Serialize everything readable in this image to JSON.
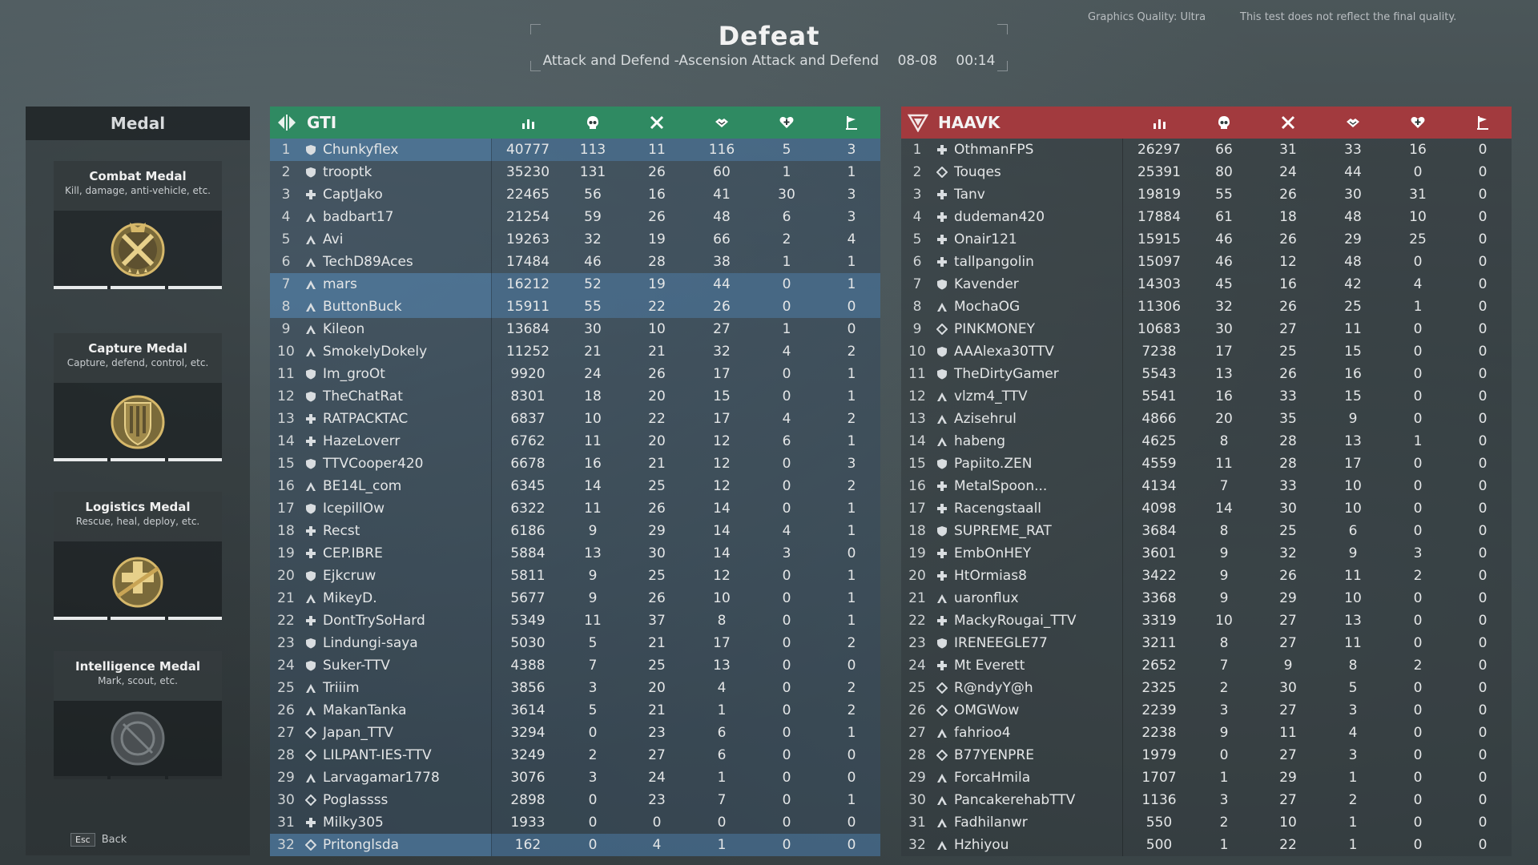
{
  "header": {
    "title": "Defeat",
    "mode": "Attack and Defend -Ascension Attack and Defend",
    "date": "08-08",
    "time": "00:14",
    "graphics_quality": "Graphics Quality: Ultra",
    "note": "This test does not reflect the final quality."
  },
  "medal_panel": {
    "title": "Medal",
    "medals": [
      {
        "name": "Combat Medal",
        "desc": "Kill, damage, anti-vehicle, etc."
      },
      {
        "name": "Capture Medal",
        "desc": "Capture, defend, control, etc."
      },
      {
        "name": "Logistics Medal",
        "desc": "Rescue, heal, deploy, etc."
      },
      {
        "name": "Intelligence Medal",
        "desc": "Mark, scout, etc."
      }
    ],
    "back_key": "Esc",
    "back_label": "Back"
  },
  "colors": {
    "gti": "#2f8a62",
    "haavk": "#a23a3e",
    "selected_row": "#46708f"
  },
  "column_icons": [
    "score-icon",
    "kills-icon",
    "deaths-icon",
    "assists-icon",
    "revives-icon",
    "captures-icon"
  ],
  "teams": [
    {
      "name": "GTI",
      "rows": [
        {
          "rank": "1",
          "cls": "shield",
          "name": "Chunkyflex",
          "v": [
            "40777",
            "113",
            "11",
            "116",
            "5",
            "3"
          ],
          "sel": true
        },
        {
          "rank": "2",
          "cls": "shield",
          "name": "trooptk",
          "v": [
            "35230",
            "131",
            "26",
            "60",
            "1",
            "1"
          ]
        },
        {
          "rank": "3",
          "cls": "cross",
          "name": "CaptJako",
          "v": [
            "22465",
            "56",
            "16",
            "41",
            "30",
            "3"
          ]
        },
        {
          "rank": "4",
          "cls": "chevron",
          "name": "badbart17",
          "v": [
            "21254",
            "59",
            "26",
            "48",
            "6",
            "3"
          ]
        },
        {
          "rank": "5",
          "cls": "chevron",
          "name": "Avi",
          "v": [
            "19263",
            "32",
            "19",
            "66",
            "2",
            "4"
          ]
        },
        {
          "rank": "6",
          "cls": "chevron",
          "name": "TechD89Aces",
          "v": [
            "17484",
            "46",
            "28",
            "38",
            "1",
            "1"
          ]
        },
        {
          "rank": "7",
          "cls": "chevron",
          "name": "mars",
          "v": [
            "16212",
            "52",
            "19",
            "44",
            "0",
            "1"
          ],
          "sel": true
        },
        {
          "rank": "8",
          "cls": "chevron",
          "name": "ButtonBuck",
          "v": [
            "15911",
            "55",
            "22",
            "26",
            "0",
            "0"
          ],
          "sel": true
        },
        {
          "rank": "9",
          "cls": "chevron",
          "name": "Kileon",
          "v": [
            "13684",
            "30",
            "10",
            "27",
            "1",
            "0"
          ]
        },
        {
          "rank": "10",
          "cls": "chevron",
          "name": "SmokelyDokely",
          "v": [
            "11252",
            "21",
            "21",
            "32",
            "4",
            "2"
          ]
        },
        {
          "rank": "11",
          "cls": "shield",
          "name": "Im_groOt",
          "v": [
            "9920",
            "24",
            "26",
            "17",
            "0",
            "1"
          ]
        },
        {
          "rank": "12",
          "cls": "shield",
          "name": "TheChatRat",
          "v": [
            "8301",
            "18",
            "20",
            "15",
            "0",
            "1"
          ]
        },
        {
          "rank": "13",
          "cls": "cross",
          "name": "RATPACKTAC",
          "v": [
            "6837",
            "10",
            "22",
            "17",
            "4",
            "2"
          ]
        },
        {
          "rank": "14",
          "cls": "cross",
          "name": "HazeLoverr",
          "v": [
            "6762",
            "11",
            "20",
            "12",
            "6",
            "1"
          ]
        },
        {
          "rank": "15",
          "cls": "shield",
          "name": "TTVCooper420",
          "v": [
            "6678",
            "16",
            "21",
            "12",
            "0",
            "3"
          ]
        },
        {
          "rank": "16",
          "cls": "chevron",
          "name": "BE14L_com",
          "v": [
            "6345",
            "14",
            "25",
            "12",
            "0",
            "2"
          ]
        },
        {
          "rank": "17",
          "cls": "shield",
          "name": "IcepillOw",
          "v": [
            "6322",
            "11",
            "26",
            "14",
            "0",
            "1"
          ]
        },
        {
          "rank": "18",
          "cls": "cross",
          "name": "Recst",
          "v": [
            "6186",
            "9",
            "29",
            "14",
            "4",
            "1"
          ]
        },
        {
          "rank": "19",
          "cls": "cross",
          "name": "CEP.IBRE",
          "v": [
            "5884",
            "13",
            "30",
            "14",
            "3",
            "0"
          ]
        },
        {
          "rank": "20",
          "cls": "shield",
          "name": "Ejkcruw",
          "v": [
            "5811",
            "9",
            "25",
            "12",
            "0",
            "1"
          ]
        },
        {
          "rank": "21",
          "cls": "chevron",
          "name": "MikeyD.",
          "v": [
            "5677",
            "9",
            "26",
            "10",
            "0",
            "1"
          ]
        },
        {
          "rank": "22",
          "cls": "cross",
          "name": "DontTrySoHard",
          "v": [
            "5349",
            "11",
            "37",
            "8",
            "0",
            "1"
          ]
        },
        {
          "rank": "23",
          "cls": "shield",
          "name": "Lindungi-saya",
          "v": [
            "5030",
            "5",
            "21",
            "17",
            "0",
            "2"
          ]
        },
        {
          "rank": "24",
          "cls": "shield",
          "name": "Suker-TTV",
          "v": [
            "4388",
            "7",
            "25",
            "13",
            "0",
            "0"
          ]
        },
        {
          "rank": "25",
          "cls": "chevron",
          "name": "Triiim",
          "v": [
            "3856",
            "3",
            "20",
            "4",
            "0",
            "2"
          ]
        },
        {
          "rank": "26",
          "cls": "chevron",
          "name": "MakanTanka",
          "v": [
            "3614",
            "5",
            "21",
            "1",
            "0",
            "2"
          ]
        },
        {
          "rank": "27",
          "cls": "diamond",
          "name": "Japan_TTV",
          "v": [
            "3294",
            "0",
            "23",
            "6",
            "0",
            "1"
          ]
        },
        {
          "rank": "28",
          "cls": "diamond",
          "name": "LILPANT-IES-TTV",
          "v": [
            "3249",
            "2",
            "27",
            "6",
            "0",
            "0"
          ]
        },
        {
          "rank": "29",
          "cls": "chevron",
          "name": "Larvagamar1778",
          "v": [
            "3076",
            "3",
            "24",
            "1",
            "0",
            "0"
          ]
        },
        {
          "rank": "30",
          "cls": "diamond",
          "name": "Poglassss",
          "v": [
            "2898",
            "0",
            "23",
            "7",
            "0",
            "1"
          ]
        },
        {
          "rank": "31",
          "cls": "cross",
          "name": "Milky305",
          "v": [
            "1933",
            "0",
            "0",
            "0",
            "0",
            "0"
          ]
        },
        {
          "rank": "32",
          "cls": "diamond",
          "name": "Pritonglsda",
          "v": [
            "162",
            "0",
            "4",
            "1",
            "0",
            "0"
          ],
          "sel": true
        }
      ]
    },
    {
      "name": "HAAVK",
      "rows": [
        {
          "rank": "1",
          "cls": "cross",
          "name": "OthmanFPS",
          "v": [
            "26297",
            "66",
            "31",
            "33",
            "16",
            "0"
          ]
        },
        {
          "rank": "2",
          "cls": "diamond",
          "name": "Touqes",
          "v": [
            "25391",
            "80",
            "24",
            "44",
            "0",
            "0"
          ]
        },
        {
          "rank": "3",
          "cls": "cross",
          "name": "Tanv",
          "v": [
            "19819",
            "55",
            "26",
            "30",
            "31",
            "0"
          ]
        },
        {
          "rank": "4",
          "cls": "cross",
          "name": "dudeman420",
          "v": [
            "17884",
            "61",
            "18",
            "48",
            "10",
            "0"
          ]
        },
        {
          "rank": "5",
          "cls": "cross",
          "name": "Onair121",
          "v": [
            "15915",
            "46",
            "26",
            "29",
            "25",
            "0"
          ]
        },
        {
          "rank": "6",
          "cls": "cross",
          "name": "tallpangolin",
          "v": [
            "15097",
            "46",
            "12",
            "48",
            "0",
            "0"
          ]
        },
        {
          "rank": "7",
          "cls": "shield",
          "name": "Kavender",
          "v": [
            "14303",
            "45",
            "16",
            "42",
            "4",
            "0"
          ]
        },
        {
          "rank": "8",
          "cls": "chevron",
          "name": "MochaOG",
          "v": [
            "11306",
            "32",
            "26",
            "25",
            "1",
            "0"
          ]
        },
        {
          "rank": "9",
          "cls": "diamond",
          "name": "PINKMONEY",
          "v": [
            "10683",
            "30",
            "27",
            "11",
            "0",
            "0"
          ]
        },
        {
          "rank": "10",
          "cls": "shield",
          "name": "AAAlexa30TTV",
          "v": [
            "7238",
            "17",
            "25",
            "15",
            "0",
            "0"
          ]
        },
        {
          "rank": "11",
          "cls": "shield",
          "name": "TheDirtyGamer",
          "v": [
            "5543",
            "13",
            "26",
            "16",
            "0",
            "0"
          ]
        },
        {
          "rank": "12",
          "cls": "chevron",
          "name": "vlzm4_TTV",
          "v": [
            "5541",
            "16",
            "33",
            "15",
            "0",
            "0"
          ]
        },
        {
          "rank": "13",
          "cls": "chevron",
          "name": "Azisehrul",
          "v": [
            "4866",
            "20",
            "35",
            "9",
            "0",
            "0"
          ]
        },
        {
          "rank": "14",
          "cls": "chevron",
          "name": "habeng",
          "v": [
            "4625",
            "8",
            "28",
            "13",
            "1",
            "0"
          ]
        },
        {
          "rank": "15",
          "cls": "shield",
          "name": "Papiito.ZEN",
          "v": [
            "4559",
            "11",
            "28",
            "17",
            "0",
            "0"
          ]
        },
        {
          "rank": "16",
          "cls": "cross",
          "name": "MetalSpoon...",
          "v": [
            "4134",
            "7",
            "33",
            "10",
            "0",
            "0"
          ]
        },
        {
          "rank": "17",
          "cls": "cross",
          "name": "Racengstaall",
          "v": [
            "4098",
            "14",
            "30",
            "10",
            "0",
            "0"
          ]
        },
        {
          "rank": "18",
          "cls": "shield",
          "name": "SUPREME_RAT",
          "v": [
            "3684",
            "8",
            "25",
            "6",
            "0",
            "0"
          ]
        },
        {
          "rank": "19",
          "cls": "cross",
          "name": "EmbOnHEY",
          "v": [
            "3601",
            "9",
            "32",
            "9",
            "3",
            "0"
          ]
        },
        {
          "rank": "20",
          "cls": "cross",
          "name": "HtOrmias8",
          "v": [
            "3422",
            "9",
            "26",
            "11",
            "2",
            "0"
          ]
        },
        {
          "rank": "21",
          "cls": "chevron",
          "name": "uaronflux",
          "v": [
            "3368",
            "9",
            "29",
            "10",
            "0",
            "0"
          ]
        },
        {
          "rank": "22",
          "cls": "cross",
          "name": "MackyRougai_TTV",
          "v": [
            "3319",
            "10",
            "27",
            "13",
            "0",
            "0"
          ]
        },
        {
          "rank": "23",
          "cls": "shield",
          "name": "IRENEEGLE77",
          "v": [
            "3211",
            "8",
            "27",
            "11",
            "0",
            "0"
          ]
        },
        {
          "rank": "24",
          "cls": "cross",
          "name": "Mt Everett",
          "v": [
            "2652",
            "7",
            "9",
            "8",
            "2",
            "0"
          ]
        },
        {
          "rank": "25",
          "cls": "diamond",
          "name": "R@ndyY@h",
          "v": [
            "2325",
            "2",
            "30",
            "5",
            "0",
            "0"
          ]
        },
        {
          "rank": "26",
          "cls": "diamond",
          "name": "OMGWow",
          "v": [
            "2239",
            "3",
            "27",
            "3",
            "0",
            "0"
          ]
        },
        {
          "rank": "27",
          "cls": "chevron",
          "name": "fahrioo4",
          "v": [
            "2238",
            "9",
            "11",
            "4",
            "0",
            "0"
          ]
        },
        {
          "rank": "28",
          "cls": "diamond",
          "name": "B77YENPRE",
          "v": [
            "1979",
            "0",
            "27",
            "3",
            "0",
            "0"
          ]
        },
        {
          "rank": "29",
          "cls": "chevron",
          "name": "ForcaHmila",
          "v": [
            "1707",
            "1",
            "29",
            "1",
            "0",
            "0"
          ]
        },
        {
          "rank": "30",
          "cls": "chevron",
          "name": "PancakerehabTTV",
          "v": [
            "1136",
            "3",
            "27",
            "2",
            "0",
            "0"
          ]
        },
        {
          "rank": "31",
          "cls": "chevron",
          "name": "Fadhilanwr",
          "v": [
            "550",
            "2",
            "10",
            "1",
            "0",
            "0"
          ]
        },
        {
          "rank": "32",
          "cls": "chevron",
          "name": "Hzhiyou",
          "v": [
            "500",
            "1",
            "22",
            "1",
            "0",
            "0"
          ]
        }
      ]
    }
  ]
}
